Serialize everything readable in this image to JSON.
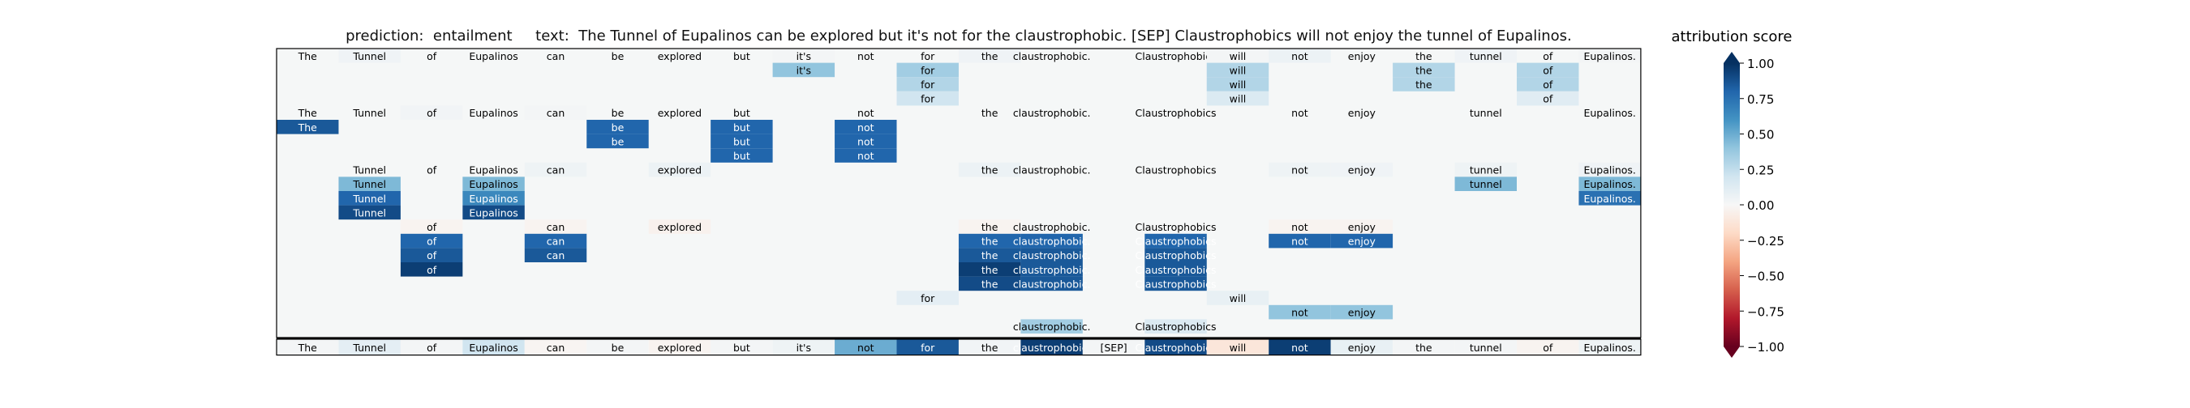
{
  "chart_data": {
    "type": "heatmap",
    "title": "prediction:  entailment     text:  The Tunnel of Eupalinos can be explored but it's not for the claustrophobic. [SEP] Claustrophobics will not enjoy the tunnel of Eupalinos.",
    "tokens": [
      "The",
      "Tunnel",
      "of",
      "Eupalinos",
      "can",
      "be",
      "explored",
      "but",
      "it's",
      "not",
      "for",
      "the",
      "claustrophobic.",
      "[SEP]",
      "Claustrophobics",
      "will",
      "not",
      "enjoy",
      "the",
      "tunnel",
      "of",
      "Eupalinos."
    ],
    "colorbar": {
      "label": "attribution score",
      "ticks": [
        "1.00",
        "0.75",
        "0.50",
        "0.25",
        "0.00",
        "−0.25",
        "−0.50",
        "−0.75",
        "−1.00"
      ],
      "range": [
        -1,
        1
      ],
      "colormap": [
        "#67001f",
        "#b2182b",
        "#d6604d",
        "#f4a582",
        "#fddbc7",
        "#f7f7f7",
        "#d1e5f0",
        "#92c5de",
        "#4393c3",
        "#2166ac",
        "#053061"
      ]
    },
    "head_rows": [
      {
        "label": [
          0,
          1,
          2,
          3,
          4,
          5,
          6,
          7,
          8,
          9,
          10,
          11,
          12,
          14,
          15,
          16,
          17,
          18,
          19,
          20,
          21
        ],
        "lc": {
          "1": 0.04,
          "8": 0.02,
          "11": 0.04,
          "13": 0.02,
          "15": 0.02,
          "16": 0.06,
          "19": 0.04,
          "21": 0.02
        },
        "rows": [
          {
            "8": 0.4,
            "10": 0.35,
            "15": 0.3,
            "18": 0.3,
            "20": 0.3
          },
          {
            "10": 0.3,
            "15": 0.3,
            "18": 0.3,
            "20": 0.3
          },
          {
            "10": 0.2,
            "15": 0.15,
            "20": 0.12
          }
        ]
      },
      {
        "label": [
          0,
          1,
          2,
          3,
          4,
          5,
          6,
          7,
          9,
          11,
          12,
          14,
          16,
          17,
          19,
          21
        ],
        "lc": {
          "2": 0.03,
          "4": 0.02
        },
        "rows": [
          {
            "0": 0.85,
            "5": 0.8,
            "7": 0.8,
            "9": 0.8
          },
          {
            "5": 0.8,
            "7": 0.8,
            "9": 0.8
          },
          {
            "7": 0.8,
            "9": 0.8
          }
        ]
      },
      {
        "label": [
          1,
          2,
          3,
          4,
          6,
          11,
          12,
          14,
          16,
          17,
          19,
          21
        ],
        "lc": {
          "4": 0.05,
          "6": 0.06,
          "11": 0.06,
          "16": 0.05,
          "17": 0.04,
          "19": 0.05,
          "21": 0.04
        },
        "rows": [
          {
            "1": 0.45,
            "3": 0.45,
            "19": 0.45,
            "21": 0.45
          },
          {
            "1": 0.8,
            "3": 0.65,
            "21": 0.75
          },
          {
            "1": 0.9,
            "3": 0.9
          }
        ]
      },
      {
        "label": [
          2,
          4,
          6,
          11,
          12,
          14,
          16,
          17
        ],
        "lc": {
          "2": -0.03,
          "4": -0.03,
          "6": -0.04,
          "11": -0.03,
          "16": -0.03,
          "17": -0.03
        },
        "rows": [
          {
            "2": 0.8,
            "4": 0.8,
            "11": 0.8,
            "12": 0.8,
            "14": 0.8,
            "16": 0.8,
            "17": 0.8
          },
          {
            "2": 0.85,
            "4": 0.85,
            "11": 0.85,
            "12": 0.85,
            "14": 0.85
          },
          {
            "2": 0.95,
            "11": 0.95,
            "12": 0.85,
            "14": 0.85
          },
          {
            "11": 0.9,
            "12": 0.85,
            "14": 0.85
          }
        ]
      },
      {
        "label": [
          10,
          15
        ],
        "lc": {
          "10": 0.1,
          "15": 0.08
        },
        "rows": []
      },
      {
        "label": [
          16,
          17
        ],
        "lc": {
          "16": 0.4,
          "17": 0.4
        },
        "rows": []
      },
      {
        "label": [
          12,
          14
        ],
        "lc": {
          "12": 0.35,
          "14": 0.15
        },
        "rows": []
      }
    ],
    "final_row": [
      0.02,
      0.1,
      0.02,
      0.2,
      -0.02,
      0.02,
      -0.03,
      0.02,
      0.05,
      0.5,
      0.85,
      0.03,
      0.95,
      0.02,
      0.9,
      -0.12,
      0.95,
      0.08,
      0.02,
      0.02,
      -0.03,
      0.05
    ]
  }
}
